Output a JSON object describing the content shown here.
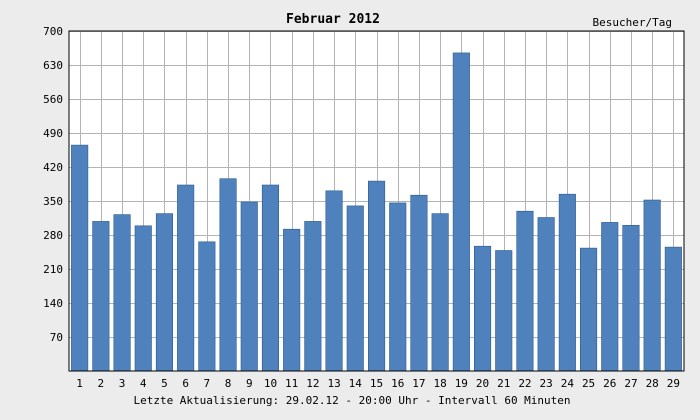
{
  "chart_data": {
    "type": "bar",
    "title": "Februar 2012",
    "unit_label": "Besucher/Tag",
    "footer": "Letzte Aktualisierung: 29.02.12 - 20:00 Uhr - Intervall 60 Minuten",
    "categories": [
      "1",
      "2",
      "3",
      "4",
      "5",
      "6",
      "7",
      "8",
      "9",
      "10",
      "11",
      "12",
      "13",
      "14",
      "15",
      "16",
      "17",
      "18",
      "19",
      "20",
      "21",
      "22",
      "23",
      "24",
      "25",
      "26",
      "27",
      "28",
      "29"
    ],
    "values": [
      465,
      308,
      322,
      299,
      324,
      383,
      266,
      396,
      348,
      383,
      292,
      308,
      371,
      340,
      391,
      346,
      362,
      324,
      655,
      257,
      248,
      329,
      316,
      364,
      253,
      306,
      300,
      352,
      255
    ],
    "ylim": [
      0,
      700
    ],
    "yticks": [
      70,
      140,
      210,
      280,
      350,
      420,
      490,
      560,
      630,
      700
    ],
    "grid": true,
    "colors": {
      "bar": "#4f81bd",
      "bar_edge": "#2e5c8f",
      "plot_bg": "#ffffff",
      "page_bg": "#ececec",
      "grid": "#b4b4b4"
    }
  }
}
